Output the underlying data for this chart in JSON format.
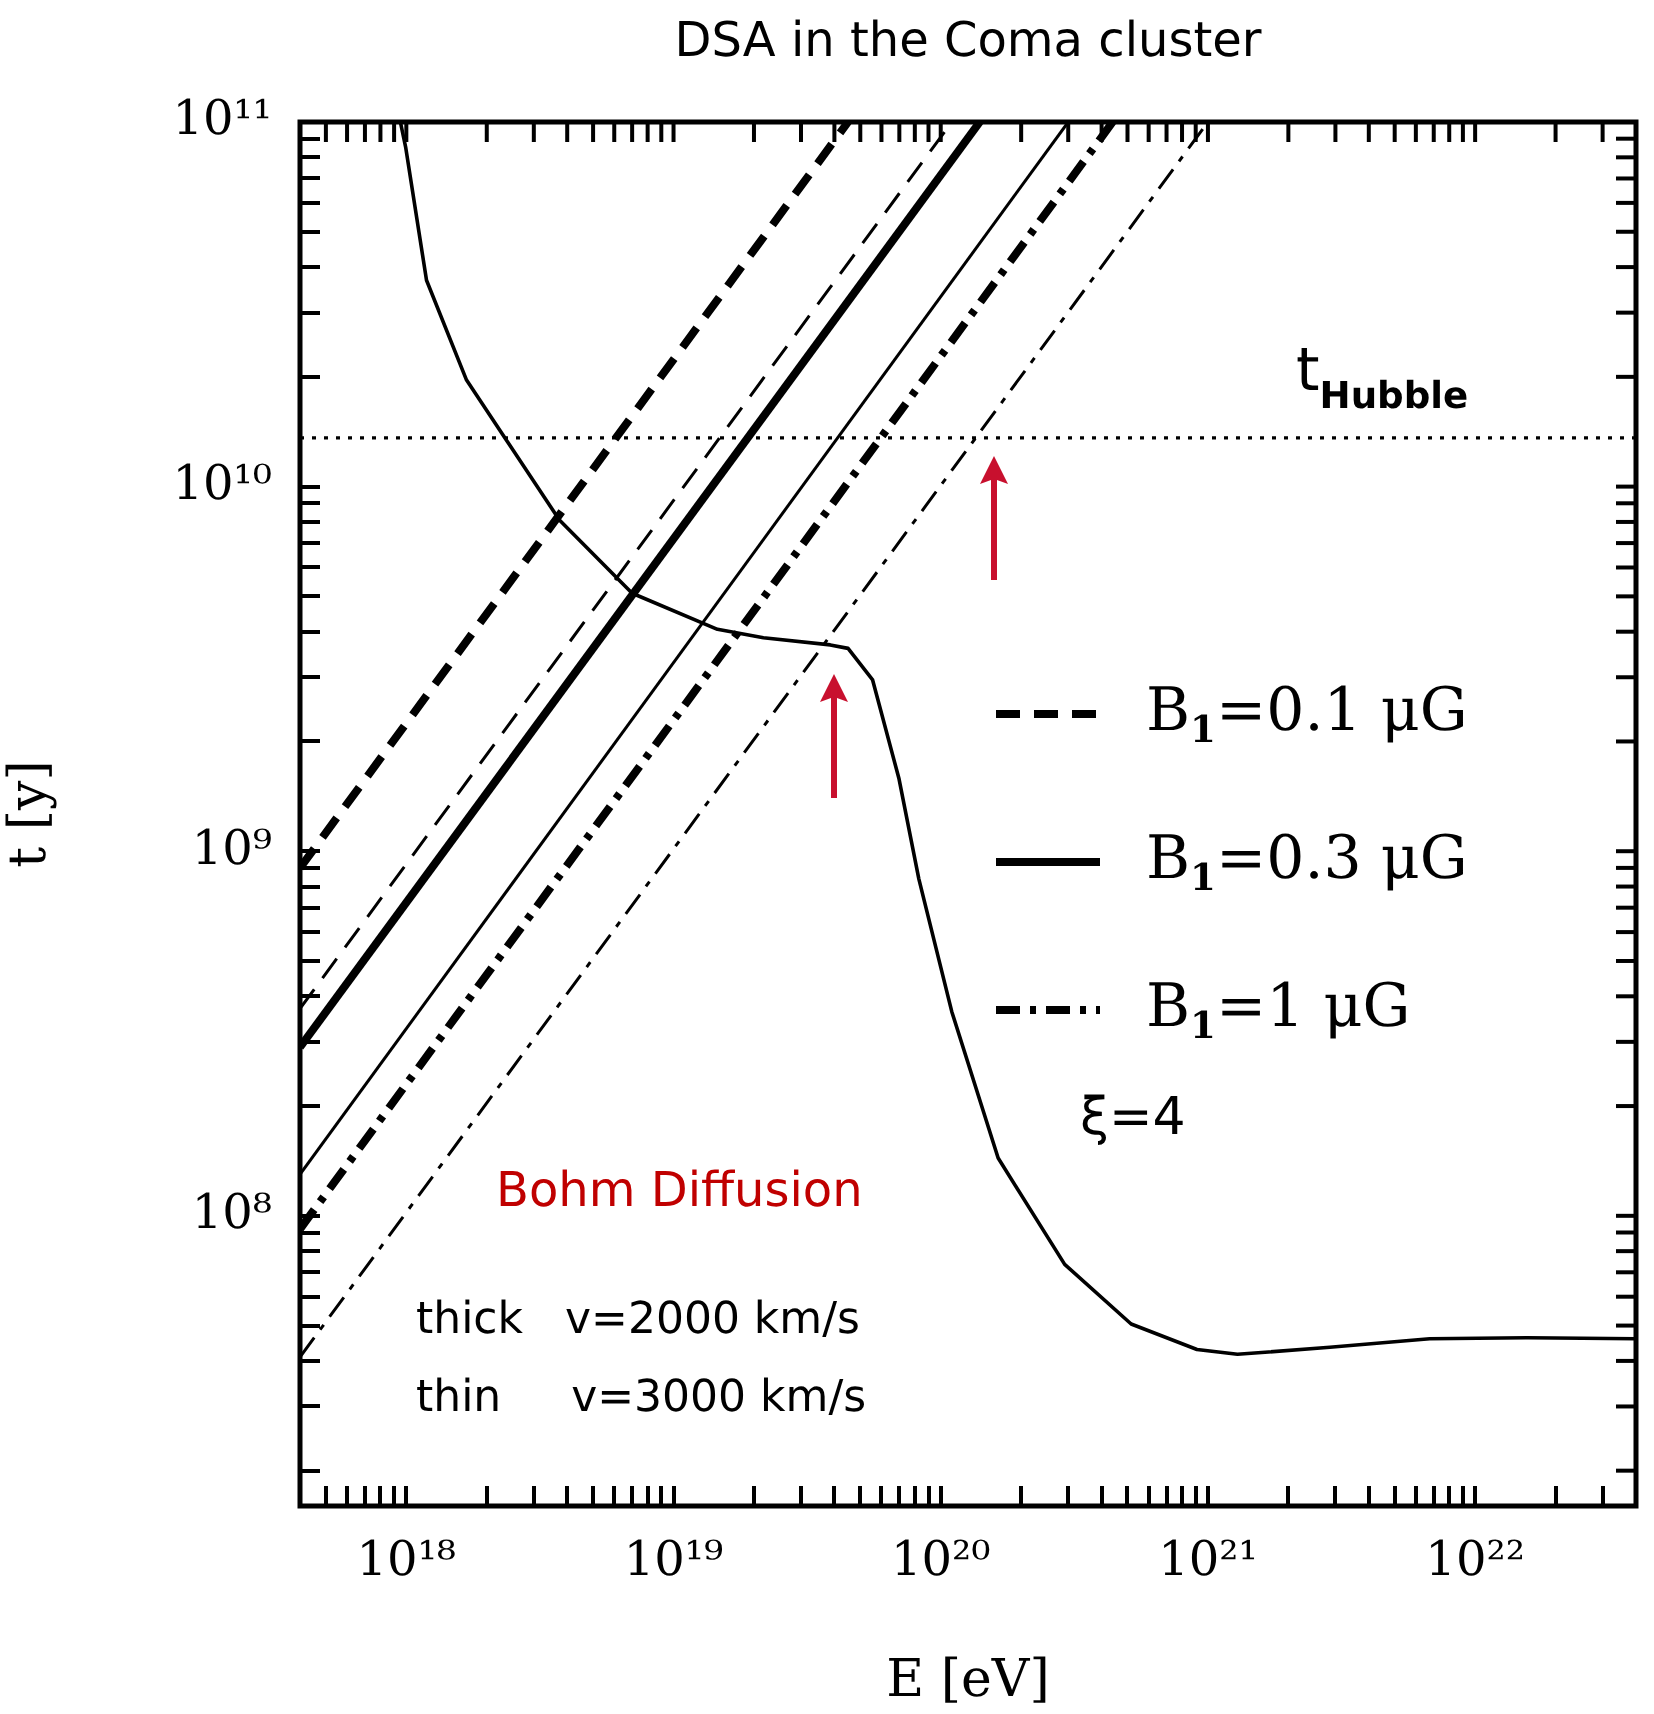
{
  "chart_data": {
    "type": "line",
    "title": "DSA in the Coma cluster",
    "xlabel": "E [eV]",
    "ylabel": "t [y]",
    "log": "xy",
    "grid": false,
    "legend": "right",
    "xlim": [
      4e+17,
      4e+22
    ],
    "ylim": [
      16000000.0,
      100000000000.0
    ],
    "xticks": [
      {
        "value": 5e+17,
        "label": null
      },
      {
        "value": 6e+17,
        "label": null
      },
      {
        "value": 7e+17,
        "label": null
      },
      {
        "value": 8e+17,
        "label": null
      },
      {
        "value": 9e+17,
        "label": null
      },
      {
        "value": 1e+18,
        "label": "10¹⁸"
      },
      {
        "value": 2e+18,
        "label": null
      },
      {
        "value": 3e+18,
        "label": null
      },
      {
        "value": 4e+18,
        "label": null
      },
      {
        "value": 5e+18,
        "label": null
      },
      {
        "value": 6e+18,
        "label": null
      },
      {
        "value": 7e+18,
        "label": null
      },
      {
        "value": 8e+18,
        "label": null
      },
      {
        "value": 9e+18,
        "label": null
      },
      {
        "value": 1e+19,
        "label": "10¹⁹"
      },
      {
        "value": 2e+19,
        "label": null
      },
      {
        "value": 3e+19,
        "label": null
      },
      {
        "value": 4e+19,
        "label": null
      },
      {
        "value": 5e+19,
        "label": null
      },
      {
        "value": 6e+19,
        "label": null
      },
      {
        "value": 7e+19,
        "label": null
      },
      {
        "value": 8e+19,
        "label": null
      },
      {
        "value": 9e+19,
        "label": null
      },
      {
        "value": 1e+20,
        "label": "10²⁰"
      },
      {
        "value": 2e+20,
        "label": null
      },
      {
        "value": 3e+20,
        "label": null
      },
      {
        "value": 4e+20,
        "label": null
      },
      {
        "value": 5e+20,
        "label": null
      },
      {
        "value": 6e+20,
        "label": null
      },
      {
        "value": 7e+20,
        "label": null
      },
      {
        "value": 8e+20,
        "label": null
      },
      {
        "value": 9e+20,
        "label": null
      },
      {
        "value": 1e+21,
        "label": "10²¹"
      },
      {
        "value": 2e+21,
        "label": null
      },
      {
        "value": 3e+21,
        "label": null
      },
      {
        "value": 4e+21,
        "label": null
      },
      {
        "value": 5e+21,
        "label": null
      },
      {
        "value": 6e+21,
        "label": null
      },
      {
        "value": 7e+21,
        "label": null
      },
      {
        "value": 8e+21,
        "label": null
      },
      {
        "value": 9e+21,
        "label": null
      },
      {
        "value": 1e+22,
        "label": "10²²"
      },
      {
        "value": 2e+22,
        "label": null
      },
      {
        "value": 3e+22,
        "label": null
      }
    ],
    "yticks": [
      {
        "value": 20000000.0,
        "label": null
      },
      {
        "value": 30000000.0,
        "label": null
      },
      {
        "value": 40000000.0,
        "label": null
      },
      {
        "value": 50000000.0,
        "label": null
      },
      {
        "value": 60000000.0,
        "label": null
      },
      {
        "value": 70000000.0,
        "label": null
      },
      {
        "value": 80000000.0,
        "label": null
      },
      {
        "value": 90000000.0,
        "label": null
      },
      {
        "value": 100000000.0,
        "label": "10⁸"
      },
      {
        "value": 200000000.0,
        "label": null
      },
      {
        "value": 300000000.0,
        "label": null
      },
      {
        "value": 400000000.0,
        "label": null
      },
      {
        "value": 500000000.0,
        "label": null
      },
      {
        "value": 600000000.0,
        "label": null
      },
      {
        "value": 700000000.0,
        "label": null
      },
      {
        "value": 800000000.0,
        "label": null
      },
      {
        "value": 900000000.0,
        "label": null
      },
      {
        "value": 1000000000.0,
        "label": "10⁹"
      },
      {
        "value": 2000000000.0,
        "label": null
      },
      {
        "value": 3000000000.0,
        "label": null
      },
      {
        "value": 4000000000.0,
        "label": null
      },
      {
        "value": 5000000000.0,
        "label": null
      },
      {
        "value": 6000000000.0,
        "label": null
      },
      {
        "value": 7000000000.0,
        "label": null
      },
      {
        "value": 8000000000.0,
        "label": null
      },
      {
        "value": 9000000000.0,
        "label": null
      },
      {
        "value": 10000000000.0,
        "label": "10¹⁰"
      },
      {
        "value": 20000000000.0,
        "label": null
      },
      {
        "value": 30000000000.0,
        "label": null
      },
      {
        "value": 40000000000.0,
        "label": null
      },
      {
        "value": 50000000000.0,
        "label": null
      },
      {
        "value": 60000000000.0,
        "label": null
      },
      {
        "value": 70000000000.0,
        "label": null
      },
      {
        "value": 80000000000.0,
        "label": null
      },
      {
        "value": 90000000000.0,
        "label": null
      },
      {
        "value": 100000000000.0,
        "label": "10¹¹"
      }
    ],
    "series": [
      {
        "name": "B$_{1}$=0.1 μG",
        "color": "#000000",
        "line_style": "dashed",
        "x": [
          4e+17,
          4.5e+19
        ],
        "values": [
          900000000.0,
          100000000000.0
        ]
      },
      {
        "color": "#000000",
        "line_style": "dashed",
        "x": [
          4e+17,
          1.1e+20
        ],
        "values": [
          370000000.0,
          100000000000.0
        ]
      },
      {
        "name": "B$_{1}$=0.3 μG",
        "color": "#000000",
        "line_style": "solid",
        "x": [
          4e+17,
          1.4e+20
        ],
        "values": [
          290000000.0,
          100000000000.0
        ]
      },
      {
        "color": "#000000",
        "line_style": "solid",
        "x": [
          4e+17,
          3e+20
        ],
        "values": [
          130000000.0,
          100000000000.0
        ]
      },
      {
        "name": "B$_{1}$=1 μG",
        "color": "#000000",
        "line_style": "dashdot",
        "x": [
          4e+17,
          4.4e+20
        ],
        "values": [
          92000000.0,
          100000000000.0
        ]
      },
      {
        "color": "#000000",
        "line_style": "dashdot",
        "x": [
          4e+17,
          1e+21
        ],
        "values": [
          41000000.0,
          100000000000.0
        ]
      },
      {
        "color": "#000000",
        "line_style": "solid",
        "x": [
          9.5e+17,
          9.95e+17,
          1.19e+18,
          1.68e+18,
          2.37e+18,
          3.74e+18,
          7e+18,
          1.46e+19,
          2.17e+19,
          3.86e+19,
          4.5e+19,
          5.56e+19,
          6.98e+19,
          8.28e+19,
          1.1e+20,
          1.64e+20,
          2.91e+20,
          5.16e+20,
          9.1e+20,
          1.29e+21,
          2.86e+21,
          6.76e+21,
          1.58e+22,
          4e+22
        ],
        "values": [
          100000000000.0,
          85000000000.0,
          36800000000.0,
          19600000000.0,
          13400000000.0,
          8100000000.0,
          5100000000.0,
          4060000000.0,
          3850000000.0,
          3680000000.0,
          3600000000.0,
          2950000000.0,
          1580000000.0,
          840000000.0,
          363000000.0,
          144000000.0,
          73600000.0,
          50500000.0,
          43000000.0,
          41700000.0,
          43600000.0,
          46000000.0,
          46300000.0,
          46000000.0
        ]
      }
    ],
    "ref_lines": [
      {
        "axis": "y",
        "value": 13600000000.0,
        "label": "t$_{Hubble}$",
        "line_style": "dotted",
        "color": "#000000"
      }
    ],
    "annotations": [
      "Bohm Diffusion",
      "ξ=4",
      "thick   v=2000 km/s",
      "thin     v=3000 km/s"
    ]
  }
}
